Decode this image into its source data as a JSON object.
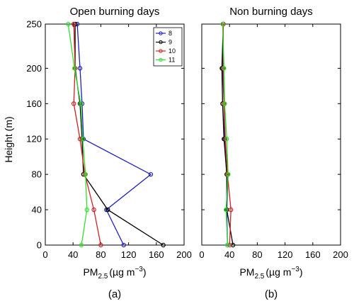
{
  "chart_data": [
    {
      "type": "line",
      "panel_label": "(a)",
      "title": "Open burning days",
      "xlabel_main": "PM",
      "xlabel_sub": "2.5",
      "xlabel_unit": "(µg m",
      "xlabel_exp": "−3",
      "xlabel_close": ")",
      "ylabel": "Height (m)",
      "xlim": [
        0,
        200
      ],
      "ylim": [
        0,
        250
      ],
      "xticks": [
        0,
        40,
        80,
        120,
        160,
        200
      ],
      "yticks": [
        0,
        40,
        80,
        120,
        160,
        200,
        250
      ],
      "grid": false,
      "legend_position": "top-right",
      "series": [
        {
          "name": "8",
          "color": "#1f1fc8",
          "x": [
            113,
            88,
            152,
            55,
            53,
            50,
            46
          ],
          "y": [
            0,
            40,
            80,
            120,
            160,
            200,
            250
          ]
        },
        {
          "name": "9",
          "color": "#000000",
          "x": [
            170,
            90,
            55,
            53,
            50,
            43,
            43
          ],
          "y": [
            0,
            40,
            80,
            120,
            160,
            200,
            250
          ]
        },
        {
          "name": "10",
          "color": "#d42020",
          "x": [
            80,
            70,
            57,
            50,
            41,
            43,
            41
          ],
          "y": [
            0,
            40,
            80,
            120,
            160,
            200,
            250
          ]
        },
        {
          "name": "11",
          "color": "#2ee32e",
          "x": [
            52,
            60,
            58,
            54,
            51,
            42,
            33
          ],
          "y": [
            0,
            40,
            80,
            120,
            160,
            200,
            250
          ]
        }
      ]
    },
    {
      "type": "line",
      "panel_label": "(b)",
      "title": "Non burning days",
      "xlabel_main": "PM",
      "xlabel_sub": "2.5",
      "xlabel_unit": "(µg m",
      "xlabel_exp": "−3",
      "xlabel_close": ")",
      "ylabel": "",
      "xlim": [
        0,
        200
      ],
      "ylim": [
        0,
        250
      ],
      "xticks": [
        0,
        40,
        80,
        120,
        160,
        200
      ],
      "yticks": [
        0,
        40,
        80,
        120,
        160,
        200,
        250
      ],
      "grid": false,
      "series": [
        {
          "name": "8",
          "color": "#1f1fc8",
          "x": [
            37,
            36,
            38,
            33,
            32,
            30,
            31
          ],
          "y": [
            0,
            40,
            80,
            120,
            160,
            200,
            250
          ]
        },
        {
          "name": "9",
          "color": "#000000",
          "x": [
            45,
            36,
            36,
            32,
            30,
            29,
            31
          ],
          "y": [
            0,
            40,
            80,
            120,
            160,
            200,
            250
          ]
        },
        {
          "name": "10",
          "color": "#d42020",
          "x": [
            40,
            42,
            37,
            34,
            32,
            31,
            31
          ],
          "y": [
            0,
            40,
            80,
            120,
            160,
            200,
            250
          ]
        },
        {
          "name": "11",
          "color": "#2ee32e",
          "x": [
            37,
            35,
            38,
            36,
            33,
            32,
            30
          ],
          "y": [
            0,
            40,
            80,
            120,
            160,
            200,
            250
          ]
        }
      ]
    }
  ]
}
